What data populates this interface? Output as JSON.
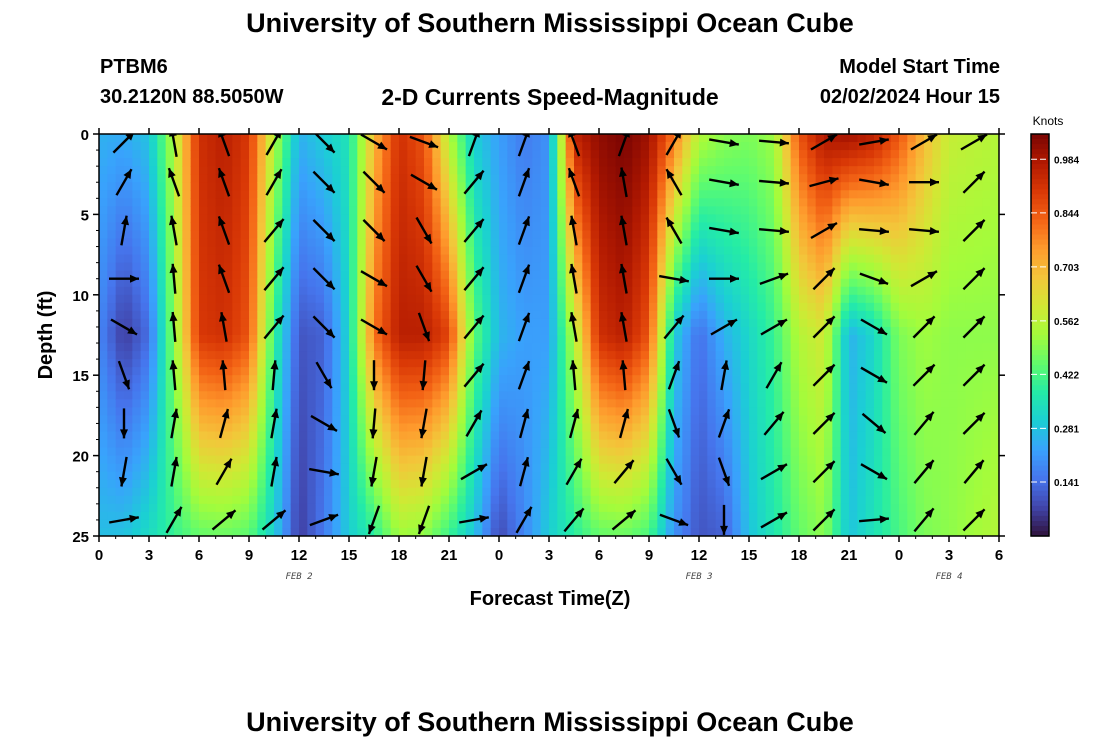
{
  "header": {
    "title": "University of Southern Mississippi Ocean Cube",
    "station_id": "PTBM6",
    "station_coords": "30.2120N  88.5050W",
    "product": "2-D Currents Speed-Magnitude",
    "model_label": "Model Start Time",
    "model_value": "02/02/2024 Hour 15"
  },
  "footer": {
    "title": "University of Southern Mississippi Ocean Cube"
  },
  "chart_data": {
    "type": "heatmap",
    "xlabel": "Forecast Time(Z)",
    "ylabel": "Depth (ft)",
    "x_ticks": [
      "0",
      "3",
      "6",
      "9",
      "12",
      "15",
      "18",
      "21",
      "0",
      "3",
      "6",
      "9",
      "12",
      "15",
      "18",
      "21",
      "0",
      "3",
      "6"
    ],
    "x_range_hours": [
      0,
      54
    ],
    "date_labels": [
      {
        "label": "FEB 2",
        "hour": 12
      },
      {
        "label": "FEB 3",
        "hour": 36
      },
      {
        "label": "FEB 4",
        "hour": 51
      }
    ],
    "y_ticks": [
      0,
      5,
      10,
      15,
      20,
      25
    ],
    "ylim": [
      0,
      25
    ],
    "y_inverted": true,
    "colorbar": {
      "unit": "Knots",
      "min": 0.0,
      "max": 1.05,
      "ticks": [
        "0.984",
        "0.844",
        "0.703",
        "0.562",
        "0.422",
        "0.281",
        "0.141"
      ],
      "tick_values": [
        0.984,
        0.844,
        0.703,
        0.562,
        0.422,
        0.281,
        0.141
      ],
      "colormap": [
        "#30123b",
        "#4145ab",
        "#4675ed",
        "#39a2fc",
        "#1bcfd4",
        "#24eca6",
        "#61fc6c",
        "#a4fc3b",
        "#d1e834",
        "#f3c63a",
        "#fe9b2d",
        "#f36315",
        "#d93806",
        "#b11901",
        "#7a0402"
      ]
    },
    "speed_profiles": [
      {
        "hour": 0,
        "top": 0.25,
        "mid": 0.18,
        "bot": 0.27
      },
      {
        "hour": 1.5,
        "top": 0.24,
        "mid": 0.06,
        "bot": 0.28
      },
      {
        "hour": 3,
        "top": 0.28,
        "mid": 0.14,
        "bot": 0.33
      },
      {
        "hour": 4.5,
        "top": 0.55,
        "mid": 0.5,
        "bot": 0.4
      },
      {
        "hour": 6,
        "top": 0.92,
        "mid": 0.9,
        "bot": 0.45
      },
      {
        "hour": 7.5,
        "top": 0.96,
        "mid": 0.92,
        "bot": 0.46
      },
      {
        "hour": 9,
        "top": 0.9,
        "mid": 0.85,
        "bot": 0.44
      },
      {
        "hour": 10.5,
        "top": 0.55,
        "mid": 0.4,
        "bot": 0.3
      },
      {
        "hour": 12,
        "top": 0.25,
        "mid": 0.1,
        "bot": 0.06
      },
      {
        "hour": 13.5,
        "top": 0.3,
        "mid": 0.12,
        "bot": 0.16
      },
      {
        "hour": 15,
        "top": 0.35,
        "mid": 0.32,
        "bot": 0.3
      },
      {
        "hour": 16.5,
        "top": 0.7,
        "mid": 0.8,
        "bot": 0.38
      },
      {
        "hour": 18,
        "top": 0.92,
        "mid": 0.96,
        "bot": 0.52
      },
      {
        "hour": 19.5,
        "top": 0.85,
        "mid": 0.96,
        "bot": 0.5
      },
      {
        "hour": 21,
        "top": 0.55,
        "mid": 0.88,
        "bot": 0.4
      },
      {
        "hour": 22.5,
        "top": 0.3,
        "mid": 0.45,
        "bot": 0.28
      },
      {
        "hour": 24,
        "top": 0.22,
        "mid": 0.26,
        "bot": 0.08
      },
      {
        "hour": 25.5,
        "top": 0.16,
        "mid": 0.22,
        "bot": 0.18
      },
      {
        "hour": 27,
        "top": 0.2,
        "mid": 0.22,
        "bot": 0.3
      },
      {
        "hour": 28.5,
        "top": 0.95,
        "mid": 0.55,
        "bot": 0.38
      },
      {
        "hour": 30,
        "top": 1.02,
        "mid": 0.92,
        "bot": 0.45
      },
      {
        "hour": 31.5,
        "top": 1.05,
        "mid": 0.96,
        "bot": 0.46
      },
      {
        "hour": 33,
        "top": 1.0,
        "mid": 0.85,
        "bot": 0.42
      },
      {
        "hour": 34.5,
        "top": 0.8,
        "mid": 0.3,
        "bot": 0.2
      },
      {
        "hour": 36,
        "top": 0.55,
        "mid": 0.14,
        "bot": 0.1
      },
      {
        "hour": 37.5,
        "top": 0.5,
        "mid": 0.25,
        "bot": 0.12
      },
      {
        "hour": 39,
        "top": 0.48,
        "mid": 0.32,
        "bot": 0.28
      },
      {
        "hour": 40.5,
        "top": 0.52,
        "mid": 0.4,
        "bot": 0.36
      },
      {
        "hour": 42,
        "top": 0.85,
        "mid": 0.55,
        "bot": 0.45
      },
      {
        "hour": 43.5,
        "top": 0.98,
        "mid": 0.6,
        "bot": 0.5
      },
      {
        "hour": 45,
        "top": 1.0,
        "mid": 0.25,
        "bot": 0.28
      },
      {
        "hour": 46.5,
        "top": 0.96,
        "mid": 0.32,
        "bot": 0.35
      },
      {
        "hour": 48,
        "top": 0.85,
        "mid": 0.48,
        "bot": 0.42
      },
      {
        "hour": 49.5,
        "top": 0.7,
        "mid": 0.52,
        "bot": 0.48
      },
      {
        "hour": 51,
        "top": 0.58,
        "mid": 0.5,
        "bot": 0.5
      },
      {
        "hour": 54,
        "top": 0.55,
        "mid": 0.5,
        "bot": 0.55
      }
    ],
    "vectors": {
      "hours": [
        1.5,
        4.5,
        7.5,
        10.5,
        13.5,
        16.5,
        19.5,
        22.5,
        25.5,
        28.5,
        31.5,
        34.5,
        37.5,
        40.5,
        43.5,
        46.5,
        49.5,
        52.5
      ],
      "depths": [
        0.5,
        3,
        6,
        9,
        12,
        15,
        18,
        21,
        24
      ],
      "directions_deg": [
        [
          45,
          350,
          340,
          30,
          135,
          120,
          110,
          20,
          20,
          340,
          20,
          30,
          100,
          95,
          60,
          80,
          60,
          60
        ],
        [
          30,
          340,
          340,
          30,
          135,
          135,
          120,
          40,
          20,
          340,
          350,
          330,
          100,
          95,
          75,
          100,
          90,
          45
        ],
        [
          10,
          350,
          340,
          40,
          135,
          135,
          150,
          40,
          20,
          350,
          350,
          330,
          100,
          95,
          60,
          95,
          95,
          45
        ],
        [
          90,
          355,
          340,
          40,
          135,
          120,
          150,
          40,
          20,
          350,
          350,
          100,
          90,
          70,
          45,
          110,
          60,
          45
        ],
        [
          120,
          355,
          350,
          40,
          135,
          120,
          160,
          40,
          20,
          350,
          350,
          40,
          60,
          60,
          45,
          120,
          45,
          45
        ],
        [
          160,
          355,
          355,
          5,
          150,
          180,
          185,
          40,
          20,
          355,
          355,
          20,
          10,
          30,
          45,
          120,
          45,
          45
        ],
        [
          180,
          10,
          15,
          10,
          120,
          185,
          190,
          30,
          15,
          15,
          15,
          160,
          20,
          40,
          45,
          130,
          40,
          45
        ],
        [
          190,
          10,
          30,
          10,
          100,
          190,
          190,
          60,
          15,
          30,
          40,
          150,
          160,
          60,
          45,
          120,
          40,
          40
        ],
        [
          80,
          30,
          50,
          50,
          70,
          200,
          200,
          80,
          30,
          40,
          50,
          110,
          180,
          60,
          45,
          85,
          40,
          45
        ]
      ]
    }
  }
}
